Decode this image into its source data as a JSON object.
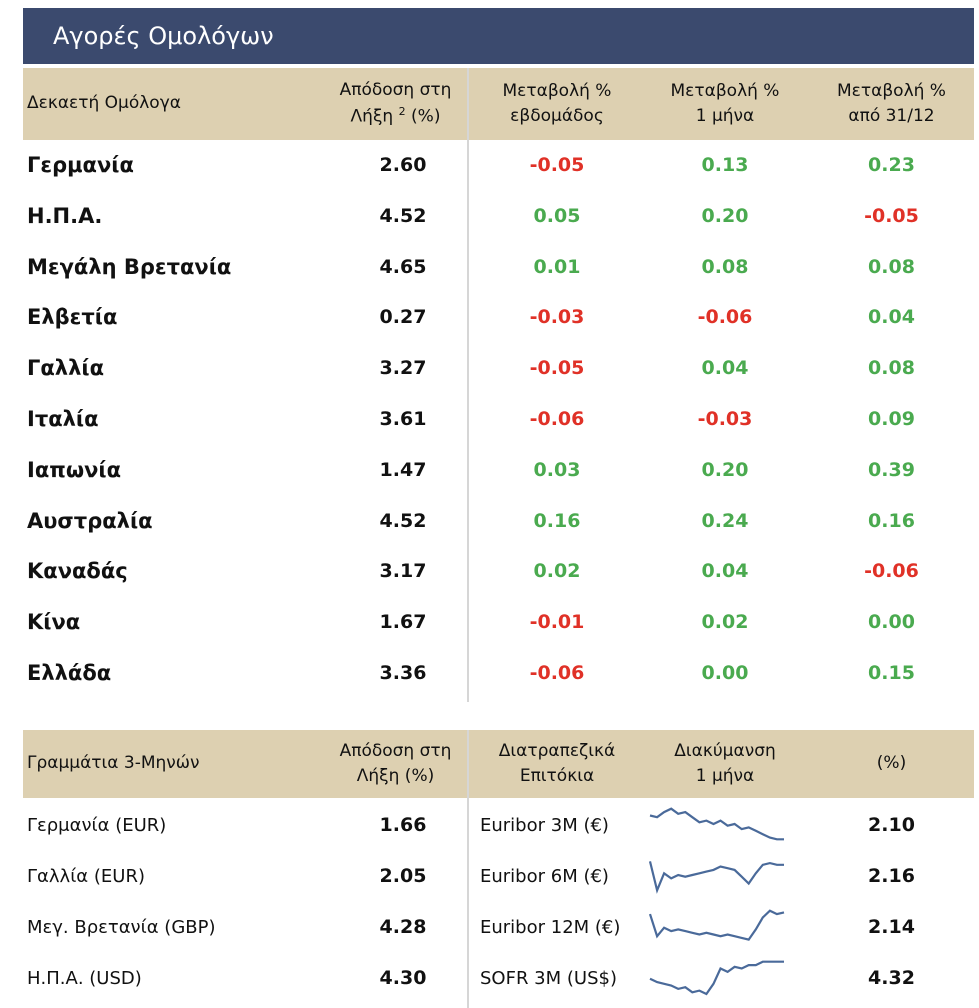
{
  "title": "Αγορές Ομολόγων",
  "bonds": {
    "headers": [
      "Δεκαετή Ομόλογα",
      "Απόδοση στη",
      "Λήξη",
      "2",
      "(%)",
      "Μεταβολή %",
      "εβδομάδος",
      "Μεταβολή %",
      "1 μήνα",
      "Μεταβολή %",
      "από 31/12"
    ],
    "rows": [
      {
        "country": "Γερμανία",
        "yield": "2.60",
        "week": "-0.05",
        "month": "0.13",
        "ytd": "0.23"
      },
      {
        "country": "Η.Π.Α.",
        "yield": "4.52",
        "week": "0.05",
        "month": "0.20",
        "ytd": "-0.05"
      },
      {
        "country": "Μεγάλη Βρετανία",
        "yield": "4.65",
        "week": "0.01",
        "month": "0.08",
        "ytd": "0.08"
      },
      {
        "country": "Ελβετία",
        "yield": "0.27",
        "week": "-0.03",
        "month": "-0.06",
        "ytd": "0.04"
      },
      {
        "country": "Γαλλία",
        "yield": "3.27",
        "week": "-0.05",
        "month": "0.04",
        "ytd": "0.08"
      },
      {
        "country": "Ιταλία",
        "yield": "3.61",
        "week": "-0.06",
        "month": "-0.03",
        "ytd": "0.09"
      },
      {
        "country": "Ιαπωνία",
        "yield": "1.47",
        "week": "0.03",
        "month": "0.20",
        "ytd": "0.39"
      },
      {
        "country": "Αυστραλία",
        "yield": "4.52",
        "week": "0.16",
        "month": "0.24",
        "ytd": "0.16"
      },
      {
        "country": "Καναδάς",
        "yield": "3.17",
        "week": "0.02",
        "month": "0.04",
        "ytd": "-0.06"
      },
      {
        "country": "Κίνα",
        "yield": "1.67",
        "week": "-0.01",
        "month": "0.02",
        "ytd": "0.00"
      },
      {
        "country": "Ελλάδα",
        "yield": "3.36",
        "week": "-0.06",
        "month": "0.00",
        "ytd": "0.15"
      }
    ]
  },
  "bills": {
    "headers": [
      "Γραμμάτια 3-Μηνών",
      "Απόδοση στη",
      "Λήξη (%)",
      "Διατραπεζικά",
      "Επιτόκια",
      "Διακύμανση",
      "1 μήνα",
      "(%)"
    ],
    "rows": [
      {
        "name": "Γερμανία (EUR)",
        "yield": "1.66",
        "rate_name": "Euribor 3M (€)",
        "rate": "2.10",
        "spark": [
          0.75,
          0.7,
          0.85,
          0.95,
          0.8,
          0.85,
          0.7,
          0.55,
          0.6,
          0.5,
          0.6,
          0.45,
          0.5,
          0.35,
          0.4,
          0.3,
          0.2,
          0.1,
          0.05,
          0.05
        ]
      },
      {
        "name": "Γαλλία (EUR)",
        "yield": "2.05",
        "rate_name": "Euribor 6M (€)",
        "rate": "2.16",
        "spark": [
          0.9,
          0.05,
          0.55,
          0.4,
          0.5,
          0.45,
          0.5,
          0.55,
          0.6,
          0.65,
          0.75,
          0.7,
          0.65,
          0.45,
          0.25,
          0.55,
          0.8,
          0.85,
          0.8,
          0.8
        ]
      },
      {
        "name": "Μεγ. Βρετανία (GBP)",
        "yield": "4.28",
        "rate_name": "Euribor 12M (€)",
        "rate": "2.14",
        "spark": [
          0.85,
          0.2,
          0.45,
          0.35,
          0.4,
          0.35,
          0.3,
          0.25,
          0.3,
          0.25,
          0.2,
          0.25,
          0.2,
          0.15,
          0.1,
          0.4,
          0.75,
          0.95,
          0.85,
          0.9
        ]
      },
      {
        "name": "Η.Π.Α. (USD)",
        "yield": "4.30",
        "rate_name": "SOFR 3M (US$)",
        "rate": "4.32",
        "spark": [
          0.45,
          0.35,
          0.3,
          0.25,
          0.15,
          0.2,
          0.05,
          0.1,
          0.0,
          0.3,
          0.75,
          0.65,
          0.8,
          0.75,
          0.85,
          0.85,
          0.95,
          0.95,
          0.95,
          0.95
        ]
      }
    ]
  },
  "colors": {
    "positive": "#4aaa4f",
    "negative": "#e03127",
    "title_bg": "#3b4a6e",
    "header_bg": "#ddd0b1",
    "spark": "#4a6a9a"
  }
}
